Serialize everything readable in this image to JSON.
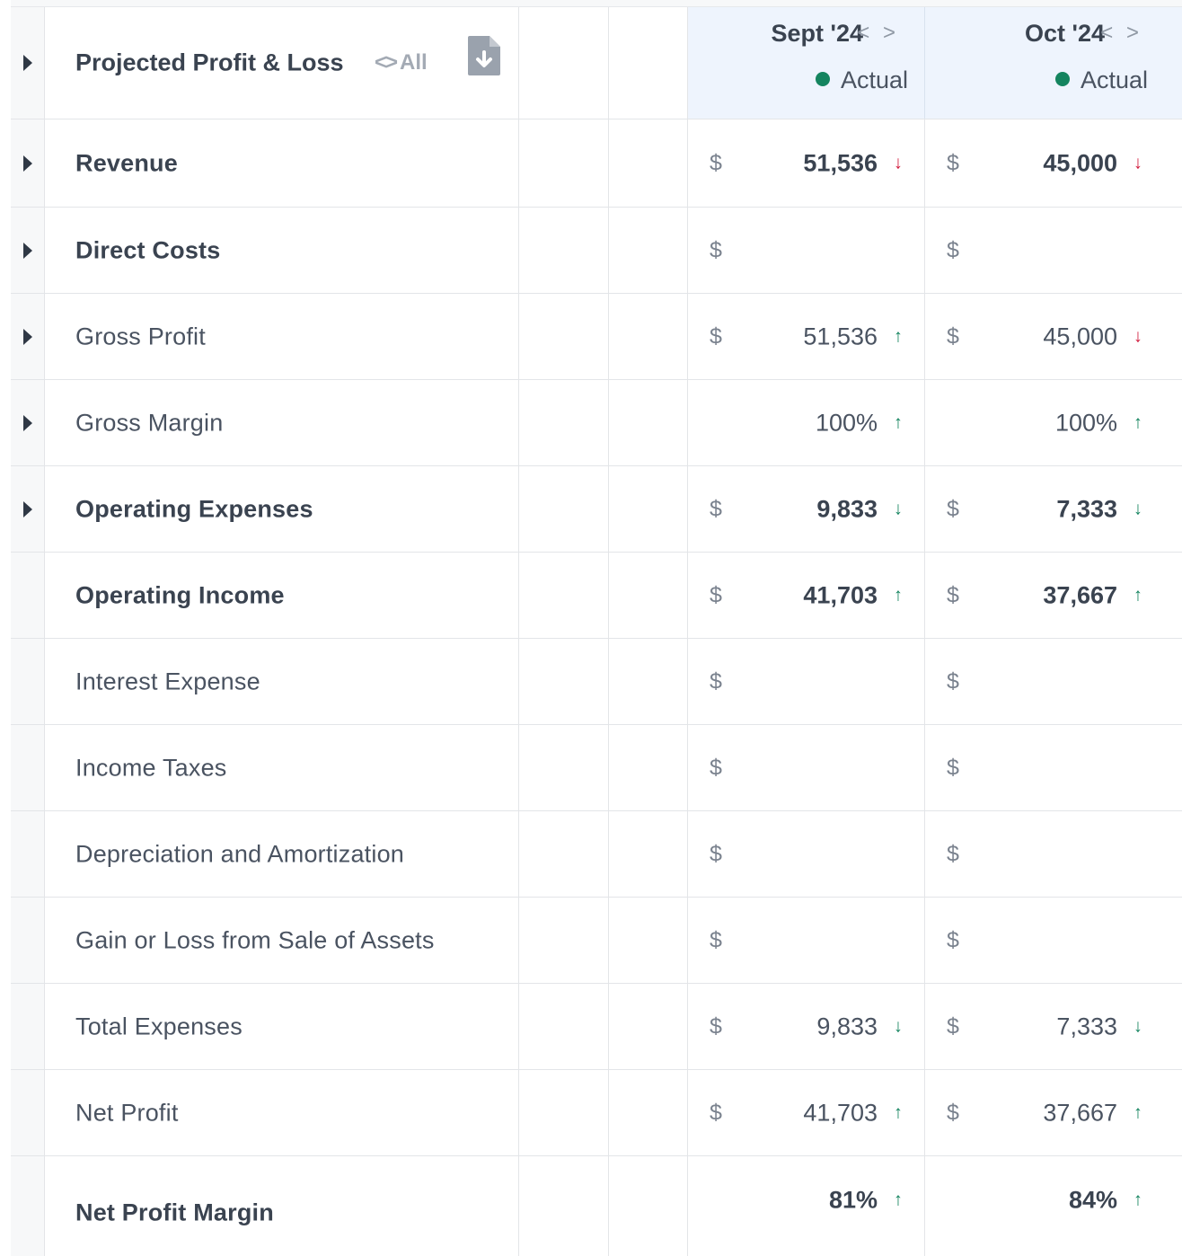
{
  "header": {
    "title": "Projected Profit & Loss",
    "all_chevrons": "<>",
    "all_label": "All",
    "months": [
      {
        "label": "Sept '24",
        "nav": "< >",
        "status": "Actual"
      },
      {
        "label": "Oct '24",
        "nav": "< >",
        "status": "Actual"
      }
    ],
    "status_color": "#14845f"
  },
  "currency_symbol": "$",
  "rows": [
    {
      "label": "Revenue",
      "expandable": true,
      "bold": true,
      "sept": {
        "value": "51,536",
        "arrow": "↓",
        "trend": "down-red"
      },
      "oct": {
        "value": "45,000",
        "arrow": "↓",
        "trend": "down-red"
      }
    },
    {
      "label": "Direct Costs",
      "expandable": true,
      "bold": true,
      "sept": {
        "value": "",
        "arrow": ""
      },
      "oct": {
        "value": "",
        "arrow": ""
      }
    },
    {
      "label": "Gross Profit",
      "expandable": true,
      "bold": false,
      "sept": {
        "value": "51,536",
        "arrow": "↑",
        "trend": "up"
      },
      "oct": {
        "value": "45,000",
        "arrow": "↓",
        "trend": "down-red"
      }
    },
    {
      "label": "Gross Margin",
      "expandable": true,
      "bold": false,
      "no_currency": true,
      "sept": {
        "value": "100%",
        "arrow": "↑",
        "trend": "up"
      },
      "oct": {
        "value": "100%",
        "arrow": "↑",
        "trend": "up"
      }
    },
    {
      "label": "Operating Expenses",
      "expandable": true,
      "bold": true,
      "sept": {
        "value": "9,833",
        "arrow": "↓",
        "trend": "down-green"
      },
      "oct": {
        "value": "7,333",
        "arrow": "↓",
        "trend": "down-green"
      }
    },
    {
      "label": "Operating Income",
      "expandable": false,
      "bold": true,
      "sept": {
        "value": "41,703",
        "arrow": "↑",
        "trend": "up"
      },
      "oct": {
        "value": "37,667",
        "arrow": "↑",
        "trend": "up"
      }
    },
    {
      "label": "Interest Expense",
      "expandable": false,
      "bold": false,
      "sept": {
        "value": "",
        "arrow": ""
      },
      "oct": {
        "value": "",
        "arrow": ""
      }
    },
    {
      "label": "Income Taxes",
      "expandable": false,
      "bold": false,
      "sept": {
        "value": "",
        "arrow": ""
      },
      "oct": {
        "value": "",
        "arrow": ""
      }
    },
    {
      "label": "Depreciation and Amortization",
      "expandable": false,
      "bold": false,
      "sept": {
        "value": "",
        "arrow": ""
      },
      "oct": {
        "value": "",
        "arrow": ""
      }
    },
    {
      "label": "Gain or Loss from Sale of Assets",
      "expandable": false,
      "bold": false,
      "sept": {
        "value": "",
        "arrow": ""
      },
      "oct": {
        "value": "",
        "arrow": ""
      }
    },
    {
      "label": "Total Expenses",
      "expandable": false,
      "bold": false,
      "sept": {
        "value": "9,833",
        "arrow": "↓",
        "trend": "down-green"
      },
      "oct": {
        "value": "7,333",
        "arrow": "↓",
        "trend": "down-green"
      }
    },
    {
      "label": "Net Profit",
      "expandable": false,
      "bold": false,
      "sept": {
        "value": "41,703",
        "arrow": "↑",
        "trend": "up"
      },
      "oct": {
        "value": "37,667",
        "arrow": "↑",
        "trend": "up"
      }
    },
    {
      "label": "Net Profit Margin",
      "expandable": false,
      "bold": true,
      "no_currency": true,
      "sept": {
        "value": "81%",
        "arrow": "↑",
        "trend": "up"
      },
      "oct": {
        "value": "84%",
        "arrow": "↑",
        "trend": "up"
      }
    }
  ]
}
